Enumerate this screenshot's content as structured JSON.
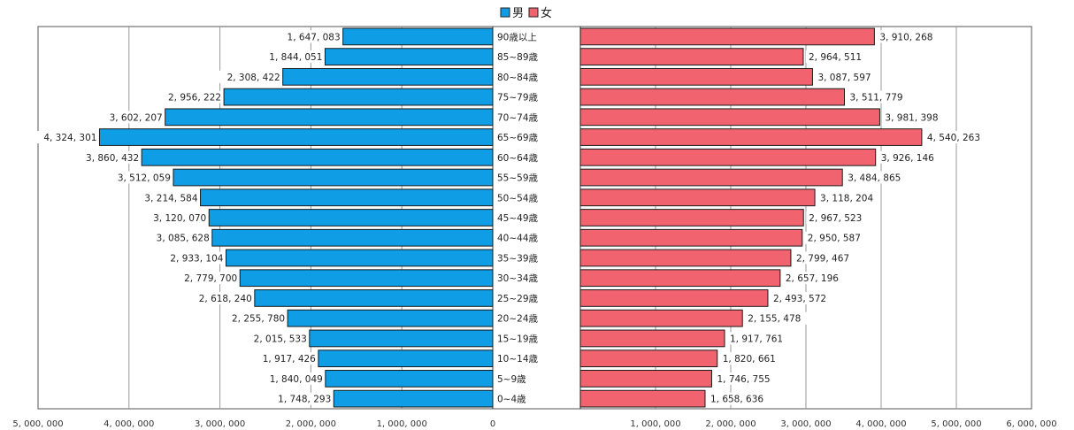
{
  "chart_data": {
    "type": "bar",
    "orientation": "horizontal",
    "subtype": "population-pyramid",
    "categories": [
      "0~4歳",
      "5~9歳",
      "10~14歳",
      "15~19歳",
      "20~24歳",
      "25~29歳",
      "30~34歳",
      "35~39歳",
      "40~44歳",
      "45~49歳",
      "50~54歳",
      "55~59歳",
      "60~64歳",
      "65~69歳",
      "70~74歳",
      "75~79歳",
      "80~84歳",
      "85~89歳",
      "90歳以上"
    ],
    "category_labels": [
      "0~4歳",
      "5~9歳",
      "10~14歳",
      "15~19歳",
      "20~24歳",
      "25~29歳",
      "30~34歳",
      "35~39歳",
      "40~44歳",
      "45~49歳",
      "50~54歳",
      "55~59歳",
      "60~64歳",
      "65~69歳",
      "70~74歳",
      "75~79歳",
      "80~84歳",
      "85~89歳",
      "90歳以上"
    ],
    "series": [
      {
        "name": "男",
        "color": "#0f9ee6",
        "side": "left",
        "values": [
          1748293,
          1840049,
          1917426,
          2015533,
          2255780,
          2618240,
          2779700,
          2933104,
          3085628,
          3120070,
          3214584,
          3512059,
          3860432,
          4324301,
          3602207,
          2956222,
          2308422,
          1844051,
          1647083
        ],
        "value_labels": [
          "1, 748, 293",
          "1, 840, 049",
          "1, 917, 426",
          "2, 015, 533",
          "2, 255, 780",
          "2, 618, 240",
          "2, 779, 700",
          "2, 933, 104",
          "3, 085, 628",
          "3, 120, 070",
          "3, 214, 584",
          "3, 512, 059",
          "3, 860, 432",
          "4, 324, 301",
          "3, 602, 207",
          "2, 956, 222",
          "2, 308, 422",
          "1, 844, 051",
          "1, 647, 083"
        ]
      },
      {
        "name": "女",
        "color": "#f26370",
        "side": "right",
        "values": [
          1658636,
          1746755,
          1820661,
          1917761,
          2155478,
          2493572,
          2657196,
          2799467,
          2950587,
          2967523,
          3118204,
          3484865,
          3926146,
          4540263,
          3981398,
          3511779,
          3087597,
          2964511,
          3910268
        ],
        "value_labels": [
          "1, 658, 636",
          "1, 746, 755",
          "1, 820, 661",
          "1, 917, 761",
          "2, 155, 478",
          "2, 493, 572",
          "2, 657, 196",
          "2, 799, 467",
          "2, 950, 587",
          "2, 967, 523",
          "3, 118, 204",
          "3, 484, 865",
          "3, 926, 146",
          "4, 540, 263",
          "3, 981, 398",
          "3, 511, 779",
          "3, 087, 597",
          "2, 964, 511",
          "3, 910, 268"
        ]
      }
    ],
    "axis": {
      "left_range": [
        0,
        5000000
      ],
      "right_range": [
        0,
        6000000
      ],
      "left_ticks": [
        5000000,
        4000000,
        3000000,
        2000000,
        1000000,
        0
      ],
      "left_tick_labels": [
        "5, 000, 000",
        "4, 000, 000",
        "3, 000, 000",
        "2, 000, 000",
        "1, 000, 000",
        "0"
      ],
      "right_ticks": [
        1000000,
        2000000,
        3000000,
        4000000,
        5000000,
        6000000
      ],
      "right_tick_labels": [
        "1, 000, 000",
        "2, 000, 000",
        "3, 000, 000",
        "4, 000, 000",
        "5, 000, 000",
        "6, 000, 000"
      ]
    },
    "legend": {
      "position": "top-center",
      "entries": [
        "男",
        "女"
      ]
    },
    "grid": true,
    "title": "",
    "xlabel": "",
    "ylabel": ""
  }
}
